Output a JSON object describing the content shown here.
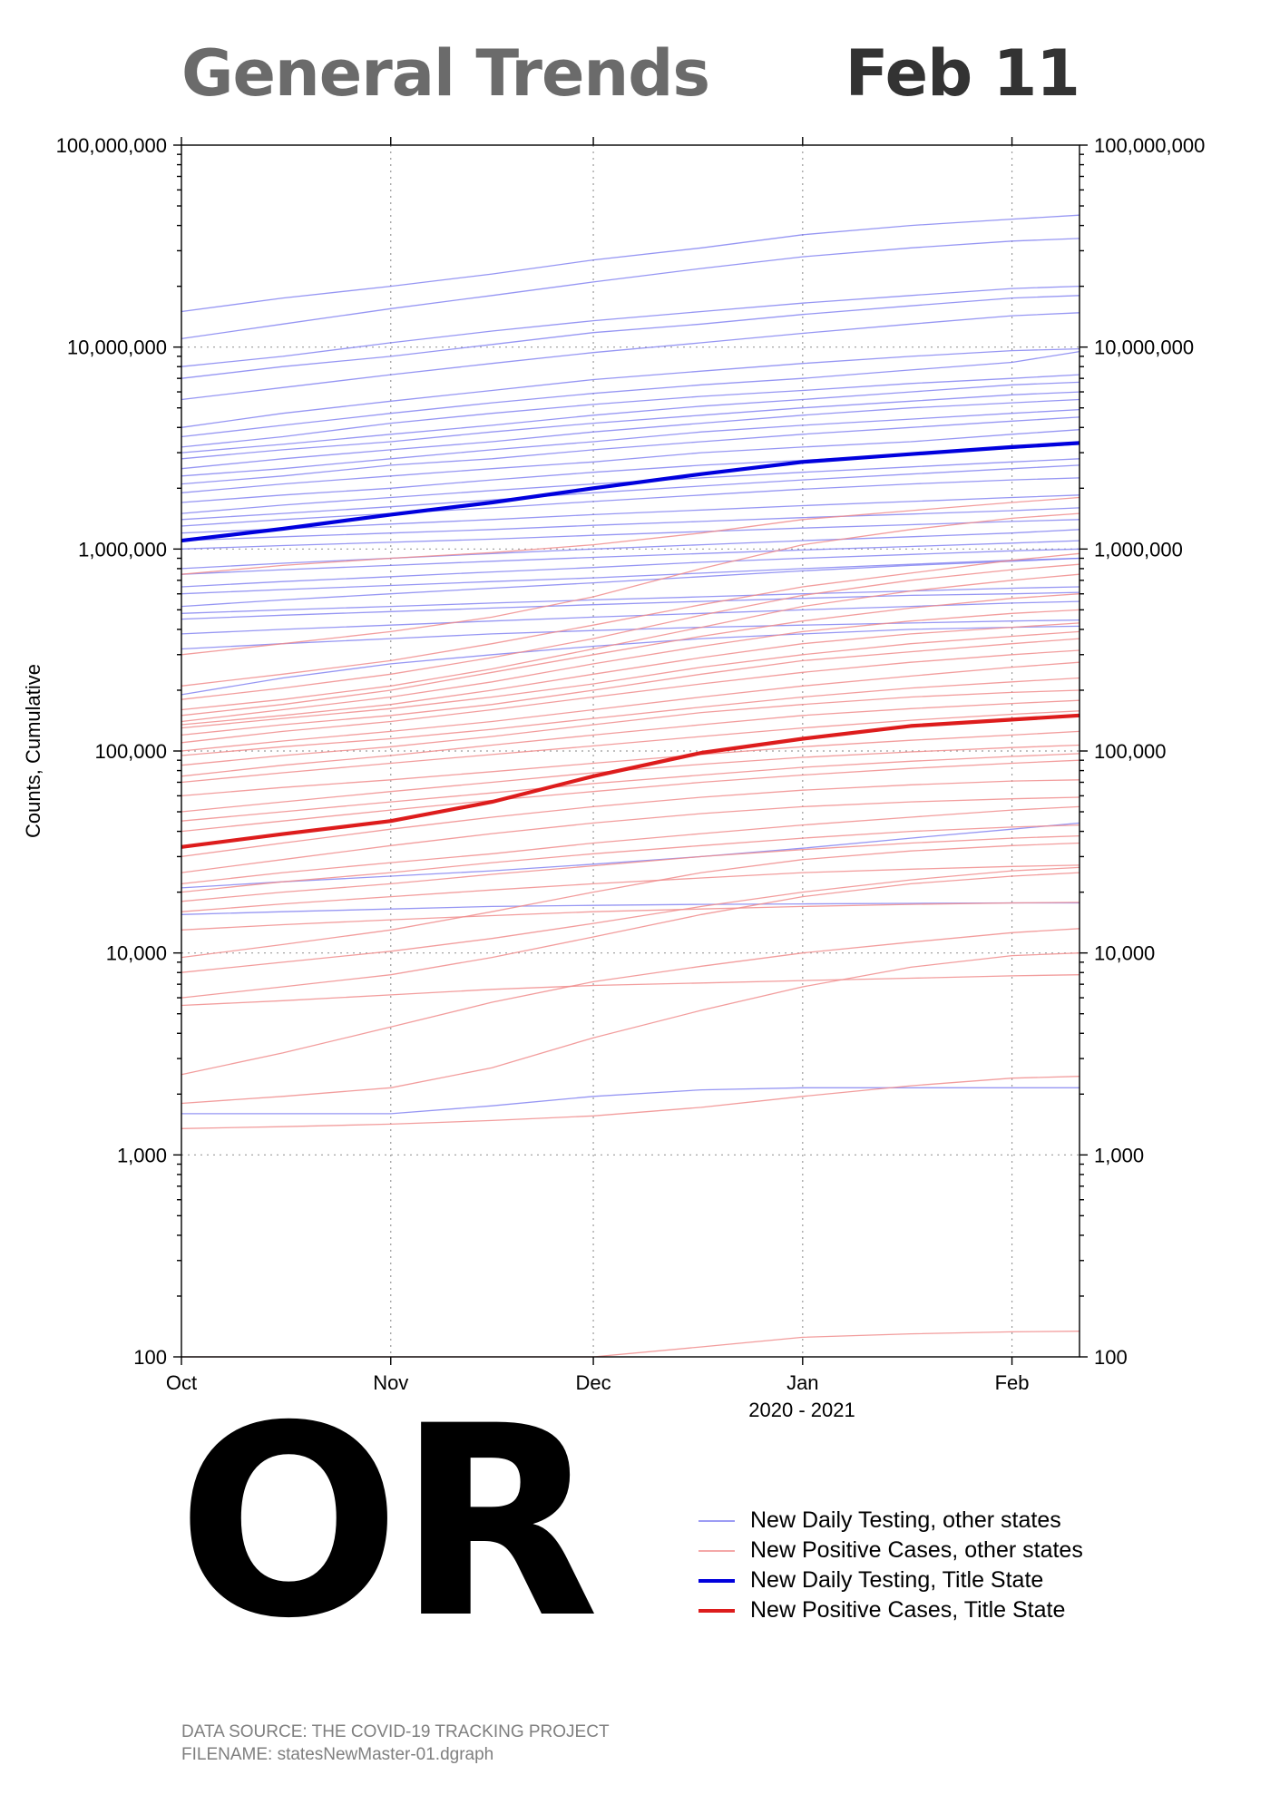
{
  "header": {
    "title": "General Trends",
    "date": "Feb 11"
  },
  "state": "OR",
  "colors": {
    "other_testing": "#7c7cf0",
    "other_cases": "#f08c8c",
    "title_testing": "#0000dd",
    "title_cases": "#dd1c1c",
    "title_gray": "#6b6b6b",
    "footer_gray": "#7f7f7f"
  },
  "legend": [
    {
      "label": "New Daily Testing, other states",
      "color": "#7c7cf0",
      "weight": "thin"
    },
    {
      "label": "New Positive Cases, other states",
      "color": "#f08c8c",
      "weight": "thin"
    },
    {
      "label": "New Daily Testing, Title State",
      "color": "#0000dd",
      "weight": "thick"
    },
    {
      "label": "New Positive Cases, Title State",
      "color": "#dd1c1c",
      "weight": "thick"
    }
  ],
  "footer": {
    "source": "DATA SOURCE: THE COVID-19 TRACKING PROJECT",
    "filename": "FILENAME: statesNewMaster-01.dgraph"
  },
  "chart_data": {
    "type": "line",
    "yscale": "log",
    "ylabel": "Counts, Cumulative",
    "xlabel": "2020 - 2021",
    "ylim": [
      100,
      100000000
    ],
    "xlim_days": [
      0,
      133
    ],
    "y_ticks": [
      {
        "value": 100,
        "label": "100"
      },
      {
        "value": 1000,
        "label": "1,000"
      },
      {
        "value": 10000,
        "label": "10,000"
      },
      {
        "value": 100000,
        "label": "100,000"
      },
      {
        "value": 1000000,
        "label": "1,000,000"
      },
      {
        "value": 10000000,
        "label": "10,000,000"
      },
      {
        "value": 100000000,
        "label": "100,000,000"
      }
    ],
    "x_ticks": [
      {
        "day": 0,
        "label": "Oct"
      },
      {
        "day": 31,
        "label": "Nov"
      },
      {
        "day": 61,
        "label": "Dec"
      },
      {
        "day": 92,
        "label": "Jan"
      },
      {
        "day": 123,
        "label": "Feb"
      }
    ],
    "x_days": [
      0,
      15,
      31,
      46,
      61,
      77,
      92,
      108,
      123,
      133
    ],
    "title_state_series": [
      {
        "name": "New Daily Testing, Title State",
        "kind": "testing",
        "values": [
          1100000,
          1260000,
          1480000,
          1700000,
          2000000,
          2350000,
          2700000,
          2950000,
          3200000,
          3350000
        ]
      },
      {
        "name": "New Positive Cases, Title State",
        "kind": "cases",
        "values": [
          33500,
          38800,
          45000,
          56000,
          75000,
          98000,
          115000,
          133000,
          143000,
          150000
        ]
      }
    ],
    "other_testing_series": [
      [
        15000000,
        17500000,
        20000000,
        23000000,
        27000000,
        31000000,
        36000000,
        40000000,
        43000000,
        45000000
      ],
      [
        11000000,
        13000000,
        15500000,
        18000000,
        21000000,
        24500000,
        28000000,
        31000000,
        33500000,
        34500000
      ],
      [
        8000000,
        9000000,
        10500000,
        12000000,
        13500000,
        15000000,
        16500000,
        18000000,
        19500000,
        20000000
      ],
      [
        7000000,
        8000000,
        9000000,
        10300000,
        11800000,
        13000000,
        14500000,
        16000000,
        17500000,
        18000000
      ],
      [
        5500000,
        6300000,
        7300000,
        8300000,
        9400000,
        10500000,
        11700000,
        13000000,
        14300000,
        14800000
      ],
      [
        4000000,
        4700000,
        5400000,
        6100000,
        6900000,
        7600000,
        8300000,
        9000000,
        9600000,
        9800000
      ],
      [
        3600000,
        4100000,
        4700000,
        5300000,
        5900000,
        6500000,
        7000000,
        7700000,
        8400000,
        9500000
      ],
      [
        3200000,
        3600000,
        4200000,
        4700000,
        5200000,
        5700000,
        6100000,
        6600000,
        7000000,
        7300000
      ],
      [
        3000000,
        3300000,
        3700000,
        4100000,
        4600000,
        5100000,
        5500000,
        6000000,
        6500000,
        6700000
      ],
      [
        2800000,
        3100000,
        3400000,
        3800000,
        4200000,
        4600000,
        5000000,
        5400000,
        5800000,
        6000000
      ],
      [
        2500000,
        2800000,
        3100000,
        3400000,
        3800000,
        4200000,
        4600000,
        5000000,
        5300000,
        5500000
      ],
      [
        2300000,
        2500000,
        2800000,
        3100000,
        3400000,
        3800000,
        4100000,
        4400000,
        4700000,
        4900000
      ],
      [
        2100000,
        2300000,
        2600000,
        2800000,
        3100000,
        3400000,
        3700000,
        4000000,
        4300000,
        4500000
      ],
      [
        1900000,
        2100000,
        2300000,
        2500000,
        2700000,
        3000000,
        3200000,
        3400000,
        3700000,
        3900000
      ],
      [
        1700000,
        1850000,
        2000000,
        2200000,
        2400000,
        2600000,
        2750000,
        2950000,
        3150000,
        3300000
      ],
      [
        1500000,
        1650000,
        1800000,
        1950000,
        2100000,
        2250000,
        2400000,
        2550000,
        2700000,
        2800000
      ],
      [
        1400000,
        1500000,
        1620000,
        1750000,
        1900000,
        2050000,
        2200000,
        2350000,
        2500000,
        2600000
      ],
      [
        1300000,
        1400000,
        1500000,
        1600000,
        1720000,
        1850000,
        1980000,
        2100000,
        2200000,
        2250000
      ],
      [
        1200000,
        1260000,
        1330000,
        1400000,
        1480000,
        1560000,
        1640000,
        1720000,
        1800000,
        1850000
      ],
      [
        1100000,
        1150000,
        1200000,
        1250000,
        1310000,
        1370000,
        1430000,
        1490000,
        1550000,
        1600000
      ],
      [
        1000000,
        1040000,
        1080000,
        1120000,
        1170000,
        1220000,
        1270000,
        1320000,
        1370000,
        1400000
      ],
      [
        800000,
        850000,
        900000,
        950000,
        1000000,
        1050000,
        1100000,
        1150000,
        1200000,
        1250000
      ],
      [
        750000,
        790000,
        830000,
        870000,
        910000,
        950000,
        990000,
        1030000,
        1070000,
        1100000
      ],
      [
        650000,
        690000,
        730000,
        770000,
        810000,
        860000,
        900000,
        940000,
        980000,
        1000000
      ],
      [
        600000,
        630000,
        660000,
        690000,
        720000,
        760000,
        800000,
        840000,
        880000,
        900000
      ],
      [
        520000,
        560000,
        600000,
        640000,
        680000,
        730000,
        780000,
        830000,
        870000,
        900000
      ],
      [
        480000,
        500000,
        520000,
        540000,
        560000,
        580000,
        600000,
        620000,
        640000,
        650000
      ],
      [
        450000,
        470000,
        490000,
        510000,
        530000,
        550000,
        570000,
        590000,
        600000,
        610000
      ],
      [
        380000,
        400000,
        420000,
        440000,
        460000,
        480000,
        500000,
        520000,
        540000,
        550000
      ],
      [
        320000,
        340000,
        360000,
        380000,
        395000,
        410000,
        420000,
        430000,
        440000,
        445000
      ],
      [
        190000,
        230000,
        270000,
        300000,
        330000,
        360000,
        380000,
        400000,
        410000,
        415000
      ],
      [
        21000,
        22500,
        24000,
        25500,
        27500,
        30000,
        33000,
        37000,
        41000,
        44000
      ],
      [
        15500,
        16000,
        16500,
        17000,
        17200,
        17400,
        17500,
        17600,
        17700,
        17700
      ],
      [
        1600,
        1600,
        1600,
        1750,
        1950,
        2100,
        2150,
        2150,
        2150,
        2150
      ]
    ],
    "other_cases_series": [
      [
        750000,
        830000,
        900000,
        960000,
        1050000,
        1200000,
        1400000,
        1550000,
        1700000,
        1800000
      ],
      [
        300000,
        340000,
        390000,
        460000,
        580000,
        800000,
        1050000,
        1250000,
        1420000,
        1500000
      ],
      [
        210000,
        240000,
        280000,
        340000,
        420000,
        530000,
        650000,
        760000,
        880000,
        950000
      ],
      [
        180000,
        205000,
        240000,
        290000,
        360000,
        470000,
        590000,
        700000,
        790000,
        840000
      ],
      [
        160000,
        180000,
        210000,
        255000,
        320000,
        410000,
        520000,
        620000,
        700000,
        750000
      ],
      [
        150000,
        170000,
        200000,
        245000,
        300000,
        370000,
        440000,
        510000,
        570000,
        600000
      ],
      [
        140000,
        160000,
        185000,
        220000,
        270000,
        330000,
        390000,
        440000,
        480000,
        500000
      ],
      [
        135000,
        150000,
        170000,
        200000,
        240000,
        290000,
        340000,
        380000,
        410000,
        430000
      ],
      [
        130000,
        145000,
        162000,
        185000,
        215000,
        260000,
        300000,
        340000,
        370000,
        390000
      ],
      [
        120000,
        135000,
        150000,
        170000,
        200000,
        240000,
        280000,
        310000,
        340000,
        360000
      ],
      [
        110000,
        125000,
        140000,
        160000,
        185000,
        215000,
        245000,
        275000,
        300000,
        315000
      ],
      [
        100000,
        112000,
        125000,
        140000,
        160000,
        185000,
        210000,
        235000,
        260000,
        275000
      ],
      [
        95000,
        105000,
        115000,
        128000,
        145000,
        165000,
        185000,
        205000,
        220000,
        230000
      ],
      [
        85000,
        95000,
        105000,
        118000,
        135000,
        155000,
        170000,
        185000,
        195000,
        200000
      ],
      [
        75000,
        85000,
        95000,
        107000,
        120000,
        135000,
        150000,
        162000,
        172000,
        178000
      ],
      [
        70000,
        78000,
        87000,
        96000,
        106000,
        118000,
        130000,
        142000,
        152000,
        158000
      ],
      [
        60000,
        66000,
        72000,
        79000,
        87000,
        96000,
        105000,
        113000,
        120000,
        125000
      ],
      [
        50000,
        56000,
        63000,
        70000,
        78000,
        86000,
        93000,
        99000,
        104000,
        107000
      ],
      [
        45000,
        50000,
        56000,
        62000,
        69000,
        76000,
        83000,
        89000,
        94000,
        97000
      ],
      [
        40000,
        45000,
        51000,
        57000,
        63000,
        70000,
        76000,
        82000,
        87000,
        90000
      ],
      [
        30000,
        35000,
        41000,
        47000,
        53000,
        59000,
        64000,
        68000,
        71000,
        72000
      ],
      [
        25000,
        29000,
        34000,
        39000,
        44000,
        49000,
        53000,
        56000,
        58000,
        59000
      ],
      [
        22000,
        25000,
        28000,
        31000,
        35000,
        39000,
        43000,
        47000,
        51000,
        53000
      ],
      [
        20000,
        22500,
        25000,
        28000,
        31000,
        34000,
        37000,
        40000,
        42000,
        43000
      ],
      [
        18000,
        20000,
        22000,
        24500,
        27000,
        30000,
        32500,
        35000,
        37000,
        38000
      ],
      [
        16000,
        17500,
        19000,
        20500,
        22000,
        23500,
        25000,
        26000,
        26800,
        27200
      ],
      [
        13000,
        13800,
        14600,
        15300,
        16000,
        16500,
        17000,
        17400,
        17700,
        17800
      ],
      [
        9500,
        11000,
        13000,
        16000,
        20000,
        25000,
        29000,
        32000,
        34000,
        35000
      ],
      [
        8000,
        9000,
        10200,
        11800,
        14000,
        17000,
        20000,
        23000,
        25500,
        26500
      ],
      [
        6000,
        6800,
        7800,
        9500,
        12000,
        15500,
        19000,
        22000,
        24000,
        25000
      ],
      [
        5500,
        5800,
        6200,
        6600,
        6900,
        7100,
        7300,
        7500,
        7700,
        7800
      ],
      [
        2500,
        3200,
        4300,
        5700,
        7200,
        8600,
        10000,
        11300,
        12600,
        13200
      ],
      [
        1800,
        1950,
        2150,
        2700,
        3800,
        5200,
        6800,
        8500,
        9700,
        10000
      ],
      [
        1350,
        1380,
        1420,
        1480,
        1560,
        1720,
        1950,
        2200,
        2400,
        2450
      ],
      [
        100,
        100,
        100,
        100,
        100,
        112,
        125,
        130,
        133,
        134
      ]
    ]
  }
}
